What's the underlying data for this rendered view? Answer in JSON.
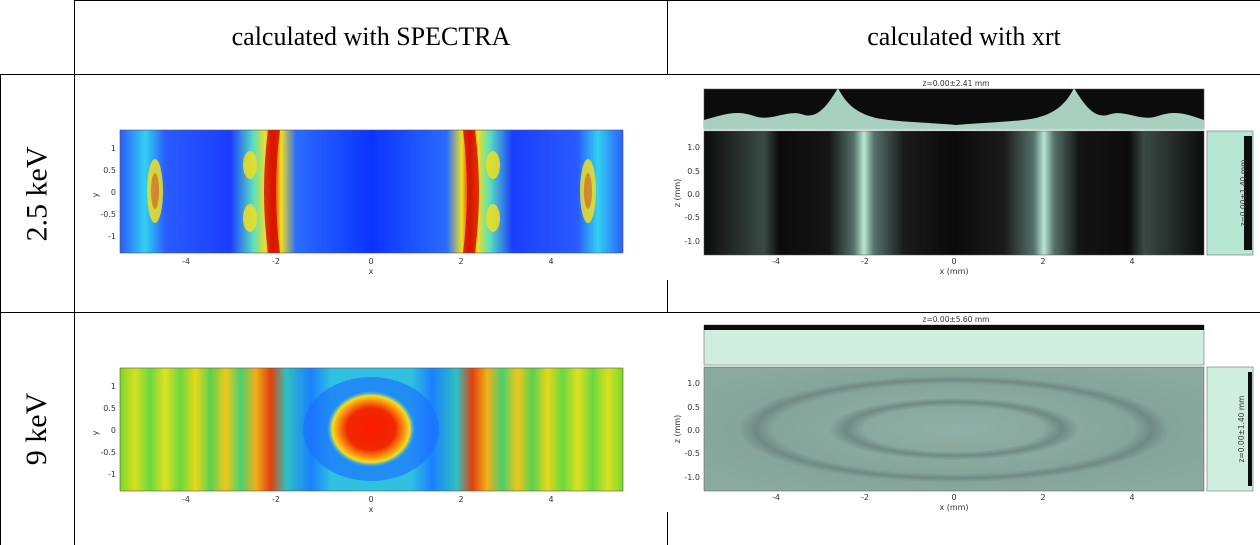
{
  "table": {
    "col_headers": [
      "calculated with SPECTRA",
      "calculated with xrt"
    ],
    "row_labels": [
      "2.5 keV",
      "9 keV"
    ]
  },
  "plots": {
    "spectra_25": {
      "x_ticks": [
        "-4",
        "-2",
        "0",
        "2",
        "4"
      ],
      "y_ticks": [
        "1",
        "0.5",
        "0",
        "-0.5",
        "-1"
      ],
      "xlabel": "x",
      "ylabel": "y"
    },
    "xrt_25": {
      "caption": "z=0.00±2.41 mm",
      "side_caption": "z=0.00±1.40 mm",
      "x_ticks": [
        "-4",
        "-2",
        "0",
        "2",
        "4"
      ],
      "y_ticks": [
        "1.0",
        "0.5",
        "0.0",
        "-0.5",
        "-1.0"
      ],
      "xlabel": "x (mm)",
      "ylabel": "z (mm)"
    },
    "spectra_9": {
      "x_ticks": [
        "-4",
        "-2",
        "0",
        "2",
        "4"
      ],
      "y_ticks": [
        "1",
        "0.5",
        "0",
        "-0.5",
        "-1"
      ],
      "xlabel": "x",
      "ylabel": "y"
    },
    "xrt_9": {
      "caption": "z=0.00±5.60 mm",
      "side_caption": "z=0.00±1.40 mm",
      "x_ticks": [
        "-4",
        "-2",
        "0",
        "2",
        "4"
      ],
      "y_ticks": [
        "1.0",
        "0.5",
        "0.0",
        "-0.5",
        "-1.0"
      ],
      "xlabel": "x (mm)",
      "ylabel": "z (mm)"
    }
  },
  "colors": {
    "jet_blue": "#0b33ff",
    "jet_red": "#e50000",
    "xrt_mint": "#cfeee0",
    "xrt_bg": "#0c0c0c"
  }
}
